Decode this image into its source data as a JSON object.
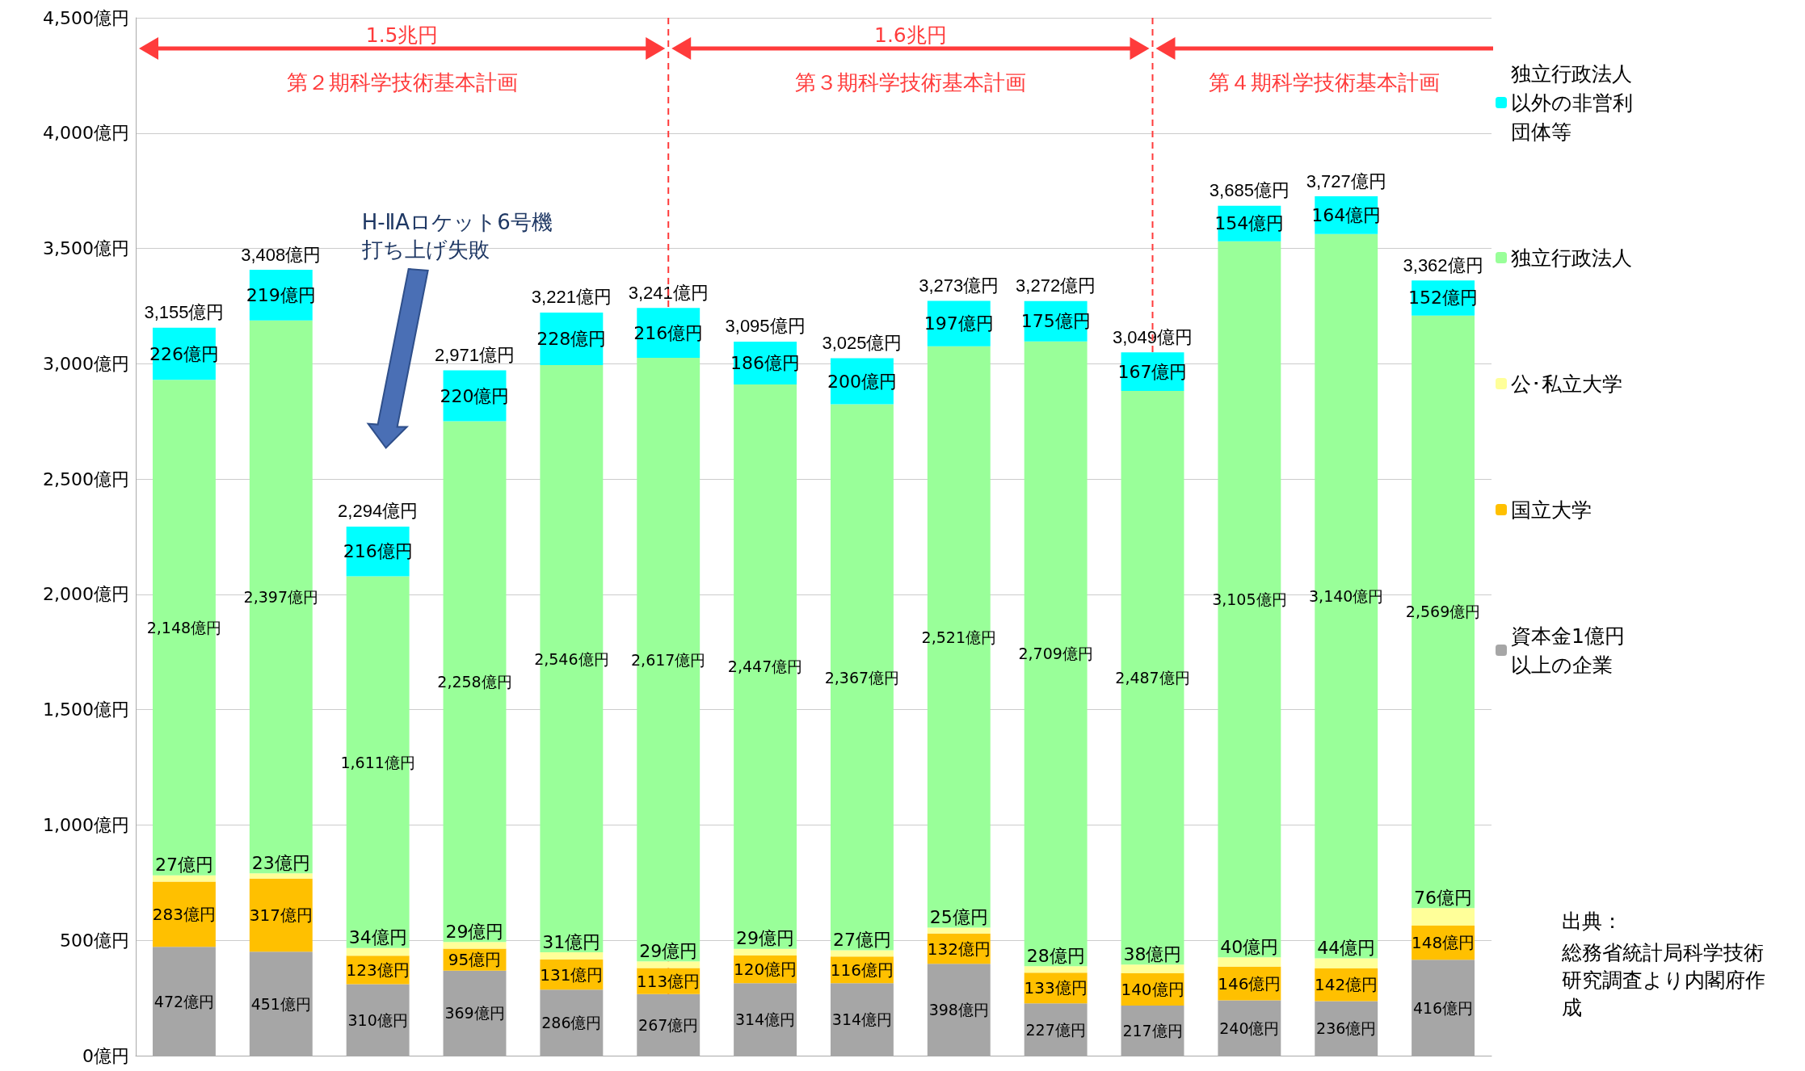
{
  "chart_data": {
    "type": "bar",
    "stacked": true,
    "categories": [
      null,
      null,
      null,
      null,
      null,
      null,
      null,
      null,
      null,
      null,
      null,
      null,
      null,
      null
    ],
    "series": [
      {
        "name": "資本金1億円以上の企業",
        "color": "#a6a6a6",
        "values": [
          472,
          451,
          310,
          369,
          286,
          267,
          314,
          314,
          398,
          227,
          217,
          240,
          236,
          416
        ],
        "value_labels": [
          "472億円",
          "451億円",
          "310億円",
          "369億円",
          "286億円",
          "267億円",
          "314億円",
          "314億円",
          "398億円",
          "227億円",
          "217億円",
          "240億円",
          "236億円",
          "416億円"
        ]
      },
      {
        "name": "国立大学",
        "color": "#ffc000",
        "values": [
          283,
          317,
          123,
          95,
          131,
          113,
          120,
          116,
          132,
          133,
          140,
          146,
          142,
          148
        ],
        "value_labels": [
          "283億円",
          "317億円",
          "123億円",
          "95億円",
          "131億円",
          "113億円",
          "120億円",
          "116億円",
          "132億円",
          "133億円",
          "140億円",
          "146億円",
          "142億円",
          "148億円"
        ]
      },
      {
        "name": "公･私立大学",
        "color": "#ffff99",
        "values": [
          27,
          23,
          34,
          29,
          31,
          29,
          29,
          27,
          25,
          28,
          38,
          40,
          44,
          76
        ],
        "value_labels": [
          "27億円",
          "23億円",
          "34億円",
          "29億円",
          "31億円",
          "29億円",
          "29億円",
          "27億円",
          "25億円",
          "28億円",
          "38億円",
          "40億円",
          "44億円",
          "76億円"
        ]
      },
      {
        "name": "独立行政法人",
        "color": "#99ff99",
        "values": [
          2148,
          2397,
          1611,
          2258,
          2546,
          2617,
          2447,
          2367,
          2521,
          2709,
          2487,
          3105,
          3140,
          2569
        ],
        "value_labels": [
          "2,148億円",
          "2,397億円",
          "1,611億円",
          "2,258億円",
          "2,546億円",
          "2,617億円",
          "2,447億円",
          "2,367億円",
          "2,521億円",
          "2,709億円",
          "2,487億円",
          "3,105億円",
          "3,140億円",
          "2,569億円"
        ]
      },
      {
        "name": "独立行政法人以外の非営利団体等",
        "color": "#00ffff",
        "values": [
          226,
          219,
          216,
          220,
          228,
          216,
          186,
          200,
          197,
          175,
          167,
          154,
          164,
          152
        ],
        "value_labels": [
          "226億円",
          "219億円",
          "216億円",
          "220億円",
          "228億円",
          "216億円",
          "186億円",
          "200億円",
          "197億円",
          "175億円",
          "167億円",
          "154億円",
          "164億円",
          "152億円"
        ]
      }
    ],
    "totals": [
      "3,155億円",
      "3,408億円",
      "2,294億円",
      "2,971億円",
      "3,221億円",
      "3,241億円",
      "3,095億円",
      "3,025億円",
      "3,273億円",
      "3,272億円",
      "3,049億円",
      "3,685億円",
      "3,727億円",
      "3,362億円"
    ],
    "ylim": [
      0,
      4500
    ],
    "yticks": [
      {
        "value": 0,
        "label": "0億円"
      },
      {
        "value": 500,
        "label": "500億円"
      },
      {
        "value": 1000,
        "label": "1,000億円"
      },
      {
        "value": 1500,
        "label": "1,500億円"
      },
      {
        "value": 2000,
        "label": "2,000億円"
      },
      {
        "value": 2500,
        "label": "2,500億円"
      },
      {
        "value": 3000,
        "label": "3,000億円"
      },
      {
        "value": 3500,
        "label": "3,500億円"
      },
      {
        "value": 4000,
        "label": "4,000億円"
      },
      {
        "value": 4500,
        "label": "4,500億円"
      }
    ],
    "grid": "y",
    "legend": "right",
    "annotations": [
      "1.5兆円",
      "1.6兆円",
      "第２期科学技術基本計画",
      "第３期科学技術基本計画",
      "第４期科学技術基本計画",
      "H-ⅡAロケット6号機打ち上げ失敗",
      "出典：",
      "総務省統計局科学技術研究調査より内閣府作成"
    ]
  }
}
